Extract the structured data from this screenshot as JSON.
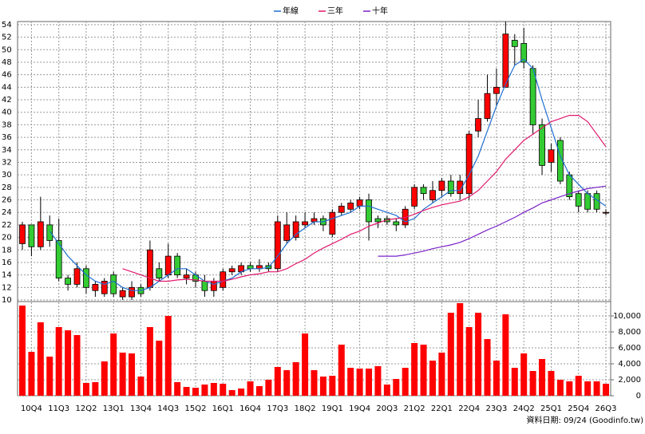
{
  "chart_data": [
    {
      "type": "candlestick",
      "open": [
        19,
        22,
        18.5,
        22,
        19.5,
        13.5,
        12.5,
        15,
        11.5,
        11,
        14,
        10.5,
        10.5,
        12,
        12,
        15,
        14,
        17,
        13.5,
        14,
        13,
        11.5,
        12,
        14.5,
        14.5,
        15.5,
        15,
        15.5,
        15,
        19.5,
        20,
        22,
        22.5,
        23,
        20.5,
        24,
        24.5,
        25,
        26,
        23,
        23,
        22.5,
        22,
        25,
        28,
        26,
        27.5,
        29,
        27,
        27,
        37,
        39,
        43,
        44,
        51.5,
        51,
        47,
        38,
        32,
        35.5,
        30,
        27,
        27,
        27,
        24
      ],
      "high": [
        22.5,
        22,
        26.5,
        23.5,
        23,
        14,
        16,
        15.5,
        13,
        13.5,
        14.5,
        12,
        13,
        12.5,
        19.5,
        16,
        19,
        17.5,
        15,
        14.5,
        14,
        13.5,
        15,
        15.5,
        16,
        16,
        16.5,
        16,
        23.5,
        24,
        23.5,
        24,
        24,
        23.5,
        24.5,
        25.5,
        26,
        26.5,
        27,
        23.5,
        23.5,
        23,
        25,
        28.5,
        28.5,
        29,
        29.5,
        30,
        30,
        37,
        42,
        46,
        47,
        54.5,
        52.5,
        53.5,
        47.5,
        39,
        35,
        36,
        30.5,
        27.5,
        27.5,
        27.5,
        24.5
      ],
      "low": [
        18,
        17,
        18,
        18.5,
        13,
        11.5,
        12,
        11,
        10.5,
        10.5,
        10.5,
        10,
        10,
        10.5,
        11.5,
        13,
        13.5,
        13.5,
        12.5,
        12,
        10.5,
        10.5,
        11.5,
        14,
        14,
        14.5,
        14.5,
        14.5,
        14.5,
        19,
        19.5,
        21.5,
        22,
        21,
        20,
        23.5,
        24,
        24.5,
        19.5,
        21.5,
        22,
        21,
        21.5,
        24.5,
        26,
        25.5,
        26.5,
        26.5,
        26,
        26,
        36,
        38.5,
        41,
        44,
        47.5,
        47,
        36.5,
        30,
        30.5,
        28.5,
        26,
        24,
        24,
        24,
        23.5
      ],
      "close": [
        22,
        18.5,
        22.5,
        19.5,
        13.5,
        12.5,
        15,
        12,
        12.5,
        13,
        11,
        11.5,
        12,
        11,
        18,
        13.5,
        17,
        14,
        14,
        13,
        11.5,
        13,
        14.5,
        15,
        15.5,
        15,
        15.5,
        15,
        22.5,
        22,
        22.5,
        22.5,
        23,
        22,
        24,
        25,
        25.5,
        26,
        22.5,
        22.5,
        22.5,
        22,
        24.5,
        28,
        27,
        27.5,
        29,
        27,
        29,
        36.5,
        39,
        43,
        44,
        52.5,
        50.5,
        48,
        38,
        31.5,
        34,
        29,
        26.5,
        25,
        24.5,
        24.5,
        24
      ],
      "up_color": "#ff0000",
      "down_color": "#33cc33",
      "series": [
        {
          "name": "年線",
          "color": "#1f6fd0",
          "values": [
            null,
            null,
            null,
            21,
            19,
            17,
            15.5,
            14,
            13,
            12.5,
            13,
            12,
            11.5,
            11.5,
            12,
            13,
            14,
            15,
            15,
            14,
            13,
            12.5,
            13,
            13.5,
            14.5,
            15,
            15,
            15.2,
            17,
            19,
            20.5,
            21.5,
            22.5,
            22.5,
            23,
            23.5,
            24,
            25,
            25,
            24.5,
            24,
            23.5,
            22.5,
            23,
            24.5,
            25.5,
            26.5,
            27.5,
            27.5,
            30,
            33,
            37,
            41,
            44.5,
            47.5,
            48.5,
            47,
            42,
            37.5,
            33,
            30,
            28.5,
            27,
            26,
            25
          ]
        },
        {
          "name": "三年",
          "color": "#e0186c",
          "values": [
            null,
            null,
            null,
            null,
            null,
            null,
            null,
            null,
            null,
            null,
            null,
            15,
            14.5,
            14,
            13.5,
            13,
            13,
            13.2,
            13.3,
            13.2,
            13,
            13,
            13,
            13.3,
            13.7,
            14,
            14.2,
            14.5,
            14.5,
            15,
            15.8,
            16.5,
            17.5,
            18.3,
            19,
            19.7,
            20.5,
            21,
            21.8,
            22.3,
            22.8,
            23,
            23.2,
            23.7,
            24.3,
            24.8,
            25.2,
            25.5,
            25.8,
            26.5,
            27.5,
            29,
            30.5,
            32.5,
            34,
            35.5,
            36.5,
            37.5,
            38.5,
            39,
            39.5,
            39.5,
            38.5,
            36.5,
            34.5
          ]
        },
        {
          "name": "十年",
          "color": "#7a22c8",
          "values": [
            null,
            null,
            null,
            null,
            null,
            null,
            null,
            null,
            null,
            null,
            null,
            null,
            null,
            null,
            null,
            null,
            null,
            null,
            null,
            null,
            null,
            null,
            null,
            null,
            null,
            null,
            null,
            null,
            null,
            null,
            null,
            null,
            null,
            null,
            null,
            null,
            null,
            null,
            null,
            17,
            17,
            17,
            17.2,
            17.5,
            17.8,
            18.2,
            18.5,
            18.8,
            19.2,
            19.8,
            20.5,
            21.2,
            21.8,
            22.5,
            23.2,
            24,
            24.7,
            25.5,
            26,
            26.5,
            27,
            27.4,
            27.8,
            28,
            28.2
          ]
        }
      ],
      "ylim": [
        10,
        54.5
      ],
      "yticks": [
        10,
        12,
        14,
        16,
        18,
        20,
        22,
        24,
        26,
        28,
        30,
        32,
        34,
        36,
        38,
        40,
        42,
        44,
        46,
        48,
        50,
        52,
        54
      ],
      "grid": true
    },
    {
      "type": "bar",
      "color": "#ff0000",
      "categories": [
        null,
        "10Q4",
        null,
        null,
        "11Q3",
        null,
        null,
        "12Q2",
        null,
        null,
        "13Q1",
        null,
        null,
        "13Q4",
        null,
        null,
        "14Q3",
        null,
        null,
        "15Q2",
        null,
        null,
        "16Q1",
        null,
        null,
        "16Q4",
        null,
        null,
        "17Q3",
        null,
        null,
        "18Q2",
        null,
        null,
        "19Q1",
        null,
        null,
        "19Q4",
        null,
        null,
        "20Q3",
        null,
        null,
        "21Q2",
        null,
        null,
        "22Q1",
        null,
        null,
        "22Q4",
        null,
        null,
        "23Q3",
        null,
        null,
        "24Q2",
        null,
        null,
        "25Q1",
        null,
        null,
        "25Q4",
        null,
        null,
        "26Q3"
      ],
      "values": [
        11300,
        5500,
        9200,
        4900,
        8600,
        8200,
        7600,
        1600,
        1700,
        4300,
        7800,
        5400,
        5300,
        2400,
        8600,
        6900,
        10000,
        1700,
        1100,
        1000,
        1400,
        1600,
        1500,
        700,
        900,
        1800,
        1200,
        2000,
        3600,
        3200,
        4200,
        7800,
        3200,
        2400,
        2500,
        6400,
        3500,
        3400,
        3400,
        3700,
        1400,
        2100,
        3500,
        6600,
        6400,
        4400,
        5400,
        10400,
        11600,
        8600,
        10400,
        7100,
        4400,
        10200,
        3500,
        5300,
        3100,
        4600,
        3100,
        2000,
        1800,
        2500,
        1800,
        1800,
        1500
      ],
      "ylim": [
        0,
        11800
      ],
      "yticks": [
        0,
        {
          "value": 2000,
          "label": "2,000"
        },
        {
          "value": 4000,
          "label": "4,000"
        },
        {
          "value": 6000,
          "label": "6,000"
        },
        {
          "value": 8000,
          "label": "8,000"
        },
        {
          "value": 10000,
          "label": "10,000"
        }
      ],
      "grid": true,
      "footnote": "資料日期: 09/24 (Goodinfo.tw)"
    }
  ]
}
